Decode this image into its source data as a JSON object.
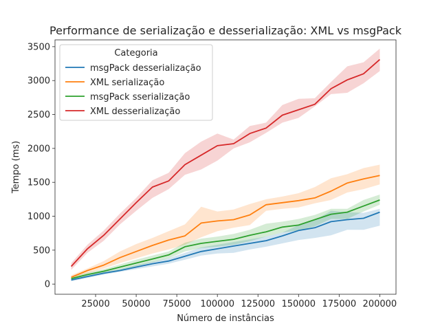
{
  "chart_data": {
    "type": "line",
    "title": "Performance de serialização e desserialização: XML vs msgPack",
    "xlabel": "Número de instâncias",
    "ylabel": "Tempo (ms)",
    "xlim": [
      0,
      210000
    ],
    "ylim": [
      -150,
      3600
    ],
    "xticks": [
      25000,
      50000,
      75000,
      100000,
      125000,
      150000,
      175000,
      200000
    ],
    "xtick_labels": [
      "25000",
      "50000",
      "75000",
      "100000",
      "125000",
      "150000",
      "175000",
      "200000"
    ],
    "yticks": [
      0,
      500,
      1000,
      1500,
      2000,
      2500,
      3000,
      3500
    ],
    "ytick_labels": [
      "0",
      "500",
      "1000",
      "1500",
      "2000",
      "2500",
      "3000",
      "3500"
    ],
    "grid": false,
    "legend": {
      "title": "Categoria",
      "placement": "upper-left"
    },
    "x": [
      10000,
      20000,
      30000,
      40000,
      50000,
      60000,
      70000,
      80000,
      90000,
      100000,
      110000,
      120000,
      130000,
      140000,
      150000,
      160000,
      170000,
      180000,
      190000,
      200000
    ],
    "series": [
      {
        "name": "msgPack desserialização",
        "color": "#1f77b4",
        "values": [
          60,
          110,
          160,
          200,
          250,
          300,
          340,
          410,
          480,
          520,
          560,
          600,
          640,
          710,
          790,
          830,
          920,
          950,
          970,
          1060
        ],
        "lower": [
          40,
          90,
          140,
          180,
          220,
          260,
          300,
          360,
          420,
          450,
          460,
          510,
          550,
          600,
          650,
          680,
          720,
          800,
          800,
          860
        ],
        "upper": [
          80,
          130,
          180,
          220,
          280,
          330,
          380,
          460,
          540,
          580,
          620,
          660,
          700,
          760,
          870,
          940,
          1080,
          1060,
          1050,
          1110
        ]
      },
      {
        "name": "XML serialização",
        "color": "#ff7f0e",
        "values": [
          100,
          200,
          280,
          390,
          480,
          570,
          650,
          710,
          900,
          930,
          950,
          1020,
          1170,
          1200,
          1230,
          1270,
          1370,
          1490,
          1550,
          1600
        ],
        "lower": [
          80,
          160,
          230,
          310,
          380,
          450,
          510,
          580,
          690,
          780,
          830,
          870,
          1080,
          1110,
          1130,
          1190,
          1240,
          1350,
          1400,
          1470
        ],
        "upper": [
          130,
          230,
          340,
          480,
          590,
          680,
          780,
          880,
          1140,
          1070,
          1100,
          1180,
          1250,
          1290,
          1340,
          1430,
          1560,
          1620,
          1710,
          1760
        ]
      },
      {
        "name": "msgPack sserialização",
        "color": "#2ca02c",
        "values": [
          80,
          140,
          190,
          250,
          310,
          370,
          430,
          550,
          600,
          630,
          660,
          720,
          770,
          840,
          870,
          950,
          1030,
          1060,
          1150,
          1240
        ],
        "lower": [
          60,
          110,
          160,
          210,
          260,
          320,
          380,
          480,
          530,
          550,
          580,
          630,
          700,
          760,
          790,
          850,
          960,
          960,
          1070,
          1170
        ],
        "upper": [
          100,
          170,
          220,
          290,
          360,
          420,
          480,
          610,
          670,
          700,
          740,
          800,
          890,
          920,
          960,
          1020,
          1110,
          1110,
          1240,
          1320
        ]
      },
      {
        "name": "XML desserialização",
        "color": "#d62728",
        "values": [
          260,
          520,
          720,
          960,
          1200,
          1430,
          1520,
          1760,
          1900,
          2040,
          2070,
          2220,
          2300,
          2490,
          2570,
          2650,
          2880,
          3010,
          3100,
          3310
        ],
        "lower": [
          210,
          460,
          640,
          880,
          1080,
          1270,
          1400,
          1610,
          1690,
          1820,
          2000,
          2090,
          2230,
          2380,
          2450,
          2620,
          2800,
          2820,
          2960,
          3140
        ],
        "upper": [
          310,
          580,
          790,
          1040,
          1270,
          1530,
          1640,
          1930,
          2100,
          2220,
          2130,
          2330,
          2380,
          2640,
          2730,
          2740,
          2980,
          3210,
          3270,
          3470
        ]
      }
    ]
  }
}
